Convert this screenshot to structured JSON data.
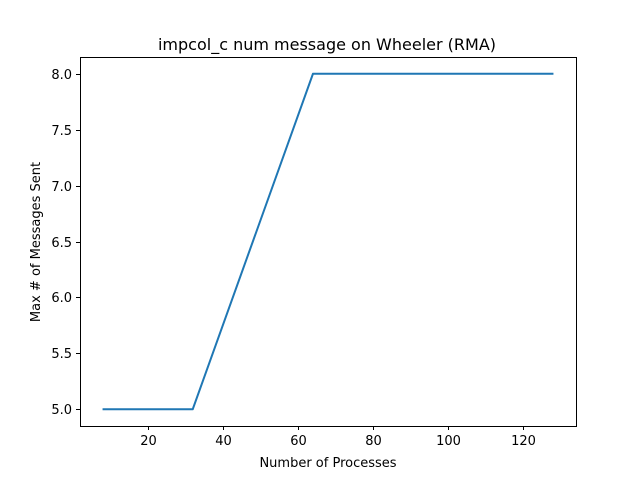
{
  "chart_data": {
    "type": "line",
    "title": "impcol_c num message on Wheeler (RMA)",
    "xlabel": "Number of Processes",
    "ylabel": "Max # of Messages Sent",
    "xlim": [
      2,
      134
    ],
    "ylim": [
      4.85,
      8.15
    ],
    "xticks": [
      20,
      40,
      60,
      80,
      100,
      120
    ],
    "xtick_labels": [
      "20",
      "40",
      "60",
      "80",
      100,
      120
    ],
    "yticks": [
      5.0,
      5.5,
      6.0,
      6.5,
      7.0,
      7.5,
      8.0
    ],
    "ytick_labels": [
      "5.0",
      "5.5",
      "6.0",
      "6.5",
      "7.0",
      "7.5",
      "8.0"
    ],
    "grid": false,
    "series": [
      {
        "color": "#1f77b4",
        "x": [
          8,
          16,
          32,
          64,
          128
        ],
        "y": [
          5,
          5,
          5,
          8,
          8
        ]
      }
    ]
  }
}
